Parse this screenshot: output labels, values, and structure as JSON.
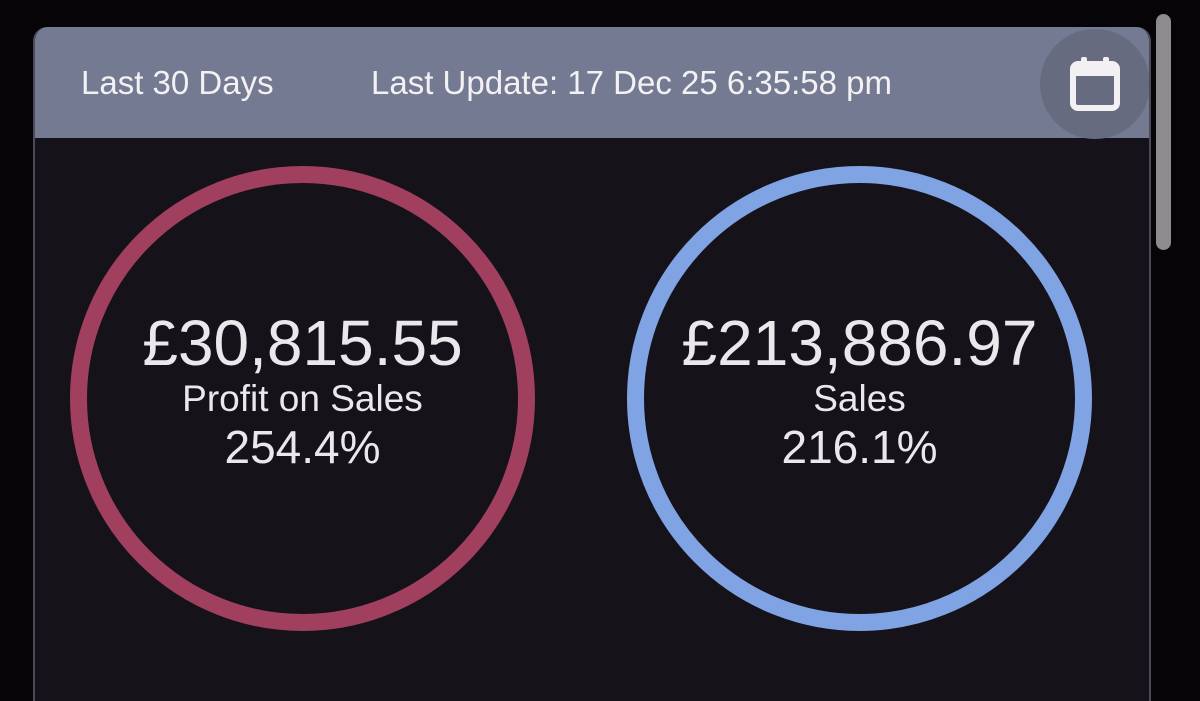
{
  "header": {
    "period": "Last 30 Days",
    "last_update": "Last Update: 17 Dec 25 6:35:58 pm"
  },
  "kpis": [
    {
      "value": "£30,815.55",
      "label": "Profit on Sales",
      "percent": "254.4%",
      "ring_color": "#a1405e"
    },
    {
      "value": "£213,886.97",
      "label": "Sales",
      "percent": "216.1%",
      "ring_color": "#7fa3e3"
    }
  ],
  "icons": {
    "calendar": "calendar-icon"
  },
  "colors": {
    "background": "#060407",
    "card": "#16121a",
    "header": "#737a91",
    "text": "#ece7ea"
  }
}
